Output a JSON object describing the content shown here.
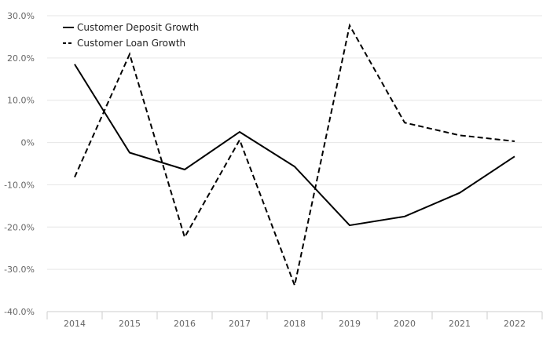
{
  "chart_data": {
    "type": "line",
    "title": "",
    "xlabel": "",
    "ylabel": "",
    "categories": [
      "2014",
      "2015",
      "2016",
      "2017",
      "2018",
      "2019",
      "2020",
      "2021",
      "2022"
    ],
    "ylim": [
      -40,
      30
    ],
    "yticks": [
      30,
      20,
      10,
      0,
      -10,
      -20,
      -30,
      -40
    ],
    "ytick_labels": [
      "30.0%",
      "20.0%",
      "10.0%",
      "0%",
      "-10.0%",
      "-20.0%",
      "-30.0%",
      "-40.0%"
    ],
    "grid": "horizontal",
    "legend_position": "top-left",
    "series": [
      {
        "name": "Customer Deposit Growth",
        "style": "solid",
        "color": "#000000",
        "values": [
          18.5,
          -2.4,
          -6.4,
          2.5,
          -5.7,
          -19.6,
          -17.5,
          -11.9,
          -3.3
        ]
      },
      {
        "name": "Customer Loan Growth",
        "style": "dashed",
        "color": "#000000",
        "values": [
          -8.2,
          20.9,
          -22.4,
          0.6,
          -33.8,
          27.7,
          4.7,
          1.7,
          0.3
        ]
      }
    ]
  }
}
